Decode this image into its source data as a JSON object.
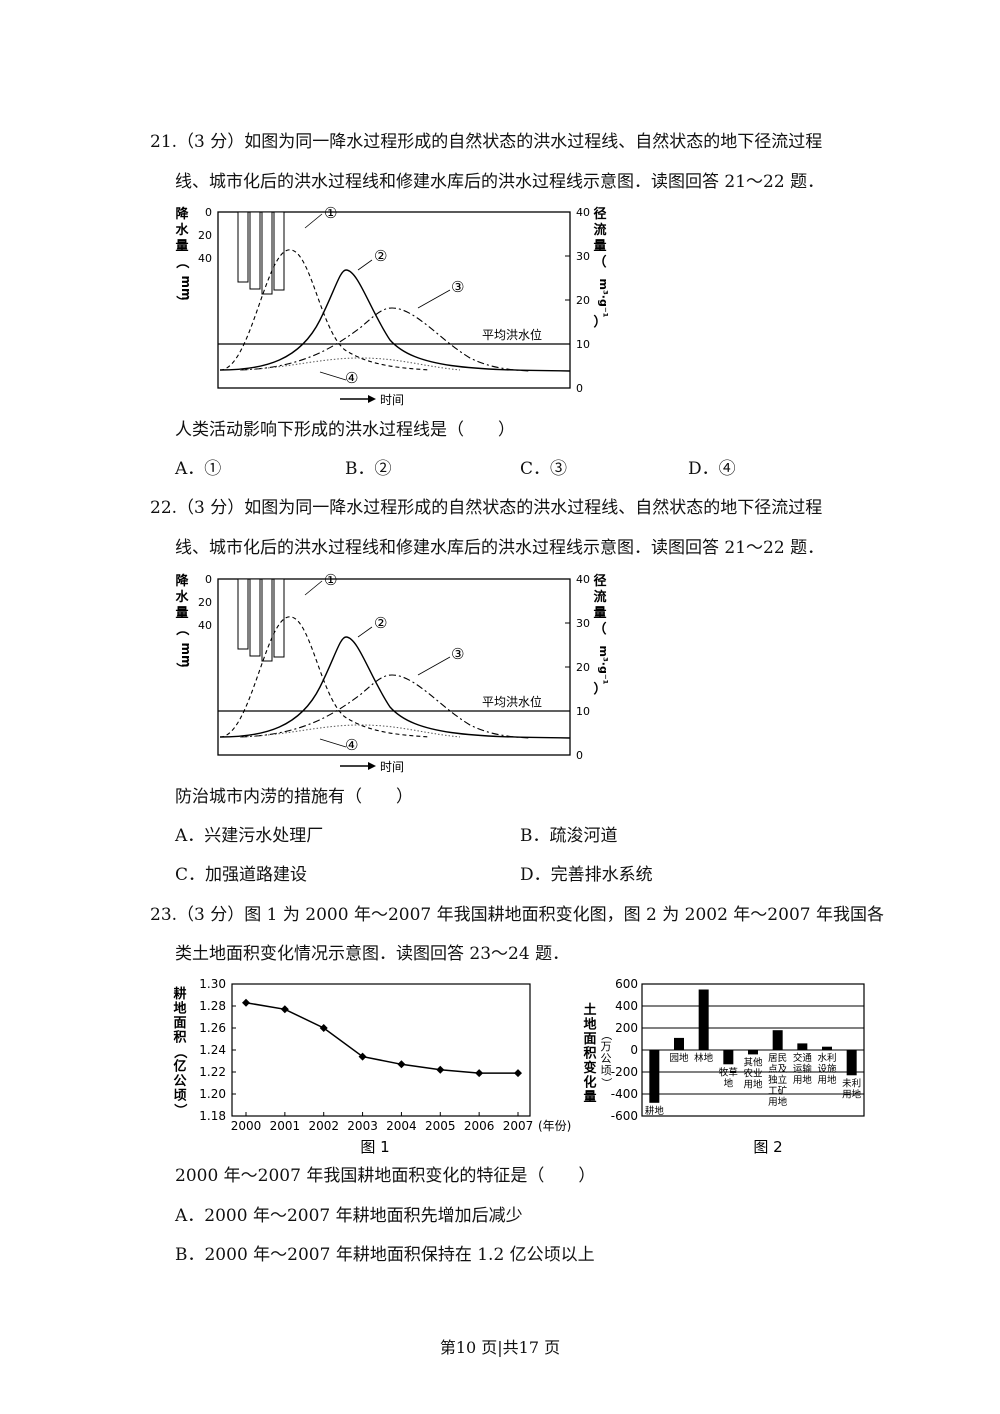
{
  "q21": {
    "line1": "21.（3 分）如图为同一降水过程形成的自然状态的洪水过程线、自然状态的地下径流过程",
    "line2": "线、城市化后的洪水过程线和修建水库后的洪水过程线示意图．读图回答 21～22 题．",
    "stem": "人类活动影响下形成的洪水过程线是（　　）",
    "options": [
      "A．①",
      "B．②",
      "C．③",
      "D．④"
    ]
  },
  "q22": {
    "line1": "22.（3 分）如图为同一降水过程形成的自然状态的洪水过程线、自然状态的地下径流过程",
    "line2": "线、城市化后的洪水过程线和修建水库后的洪水过程线示意图．读图回答 21～22 题．",
    "stem": "防治城市内涝的措施有（　　）",
    "options": [
      "A．兴建污水处理厂",
      "B．疏浚河道",
      "C．加强道路建设",
      "D．完善排水系统"
    ]
  },
  "q23": {
    "line1": "23.（3 分）图 1 为 2000 年～2007 年我国耕地面积变化图，图 2 为 2002 年～2007 年我国各",
    "line2": "类土地面积变化情况示意图．读图回答 23～24 题．",
    "stem": "2000 年～2007 年我国耕地面积变化的特征是（　　）",
    "options": [
      "A．2000 年～2007 年耕地面积先增加后减少",
      "B．2000 年～2007 年耕地面积保持在 1.2 亿公顷以上"
    ]
  },
  "footer": "第10 页|共17 页",
  "flood_figure": {
    "left_axis_label": [
      "降",
      "水",
      "量",
      "（",
      "mm",
      "）"
    ],
    "left_ticks": [
      "0",
      "20",
      "40"
    ],
    "right_axis_label": [
      "径",
      "流",
      "量",
      "（",
      "m³·g⁻¹",
      "）"
    ],
    "right_ticks": [
      "40",
      "30",
      "20",
      "10",
      "0"
    ],
    "mean_flood_label": "平均洪水位",
    "time_label": "时间",
    "curve_labels": [
      "①",
      "②",
      "③",
      "④"
    ]
  },
  "chart_data": [
    {
      "type": "line",
      "caption": "图 1",
      "ylabel": "耕地面积（亿公顷）",
      "xlabel_unit": "(年份)",
      "x": [
        "2000",
        "2001",
        "2002",
        "2003",
        "2004",
        "2005",
        "2006",
        "2007"
      ],
      "values": [
        1.283,
        1.277,
        1.26,
        1.234,
        1.227,
        1.222,
        1.219,
        1.219
      ],
      "yticks": [
        "1.30",
        "1.28",
        "1.26",
        "1.24",
        "1.22",
        "1.20",
        "1.18"
      ],
      "ylim": [
        1.18,
        1.3
      ]
    },
    {
      "type": "bar",
      "caption": "图 2",
      "ylabel": "土地面积变化量（万公顷）",
      "categories": [
        "耕地",
        "园地",
        "林地",
        "牧草地",
        "其他农业用地",
        "居民点及独立工矿用地",
        "交通运输用地",
        "水利设施用地",
        "未利用地"
      ],
      "category_labels": [
        [
          "耕地"
        ],
        [
          "园地"
        ],
        [
          "林地"
        ],
        [
          "牧草",
          "地"
        ],
        [
          "其他",
          "农业",
          "用地"
        ],
        [
          "居民",
          "点及",
          "独立",
          "工矿",
          "用地"
        ],
        [
          "交通",
          "运输",
          "用地"
        ],
        [
          "水利",
          "设施",
          "用地"
        ],
        [
          "未利",
          "用地"
        ]
      ],
      "values": [
        -480,
        110,
        550,
        -130,
        -40,
        180,
        60,
        30,
        -230
      ],
      "yticks": [
        "600",
        "400",
        "200",
        "0",
        "-200",
        "-400",
        "-600"
      ],
      "ylim": [
        -600,
        600
      ]
    }
  ]
}
